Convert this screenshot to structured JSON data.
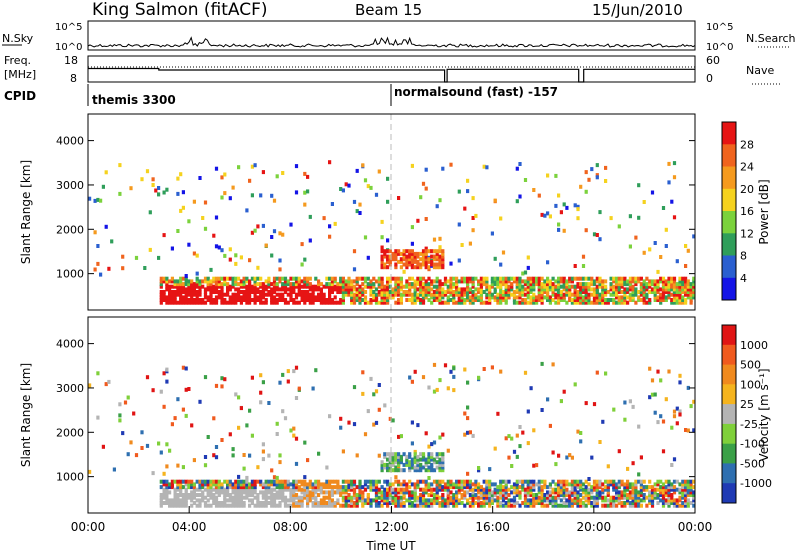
{
  "header": {
    "station": "King Salmon (fitACF)",
    "beam": "Beam 15",
    "date": "15/Jun/2010"
  },
  "chart_data": [
    {
      "type": "line",
      "panel": "noise",
      "left_label": "N.Sky",
      "right_label": "N.Search",
      "left_ticks": [
        "10^5",
        "10^0"
      ],
      "right_ticks": [
        "10^5",
        "10^0"
      ]
    },
    {
      "type": "line",
      "panel": "frequency",
      "left_label": [
        "Freq.",
        "[MHz]"
      ],
      "right_label": "Nave",
      "left_ticks": [
        "18",
        "8"
      ],
      "right_ticks": [
        "60",
        "0"
      ],
      "freq_steps": [
        {
          "t0": 0.0,
          "t1": 2.8,
          "mhz": 13.2
        },
        {
          "t0": 2.8,
          "t1": 14.1,
          "mhz": 12.6
        },
        {
          "t0": 14.1,
          "t1": 14.2,
          "mhz": 8.0
        },
        {
          "t0": 14.2,
          "t1": 19.4,
          "mhz": 12.9
        },
        {
          "t0": 19.4,
          "t1": 19.6,
          "mhz": 8.0
        },
        {
          "t0": 19.6,
          "t1": 24.0,
          "mhz": 12.9
        }
      ]
    },
    {
      "type": "table",
      "panel": "cpid",
      "label": "CPID",
      "entries": [
        {
          "start_hour": 0.0,
          "text": "themis 3300"
        },
        {
          "start_hour": 12.0,
          "text": "normalsound (fast) -157"
        }
      ]
    },
    {
      "type": "heatmap",
      "panel": "power",
      "ylabel": "Slant Range [km]",
      "yticks": [
        1000,
        2000,
        3000,
        4000
      ],
      "ylim": [
        180,
        4600
      ],
      "xlim": [
        0,
        24
      ],
      "colorbar_label": "Power [dB]",
      "colorbar_ticks": [
        "4",
        "8",
        "12",
        "16",
        "20",
        "24",
        "28"
      ],
      "colorbar_colors": [
        "#1414e6",
        "#2a5fd0",
        "#2f9e5a",
        "#7bd23c",
        "#f5d21e",
        "#f59a1e",
        "#f0641e",
        "#e61414"
      ]
    },
    {
      "type": "heatmap",
      "panel": "velocity",
      "ylabel": "Slant Range [km]",
      "yticks": [
        1000,
        2000,
        3000,
        4000
      ],
      "ylim": [
        180,
        4600
      ],
      "xlim": [
        0,
        24
      ],
      "xticks": [
        "00:00",
        "04:00",
        "08:00",
        "12:00",
        "16:00",
        "20:00",
        "00:00"
      ],
      "xlabel": "Time UT",
      "colorbar_label": "Velocity [m s⁻¹]",
      "colorbar_ticks": [
        "1000",
        "500",
        "100",
        "25",
        "-25",
        "-100",
        "-500",
        "-1000"
      ],
      "colorbar_colors": [
        "#1f3ab4",
        "#2e6fb0",
        "#3aa047",
        "#7fd03a",
        "#b4b4b4",
        "#f5b41e",
        "#f08a1e",
        "#f05a1e",
        "#e01414"
      ]
    }
  ]
}
